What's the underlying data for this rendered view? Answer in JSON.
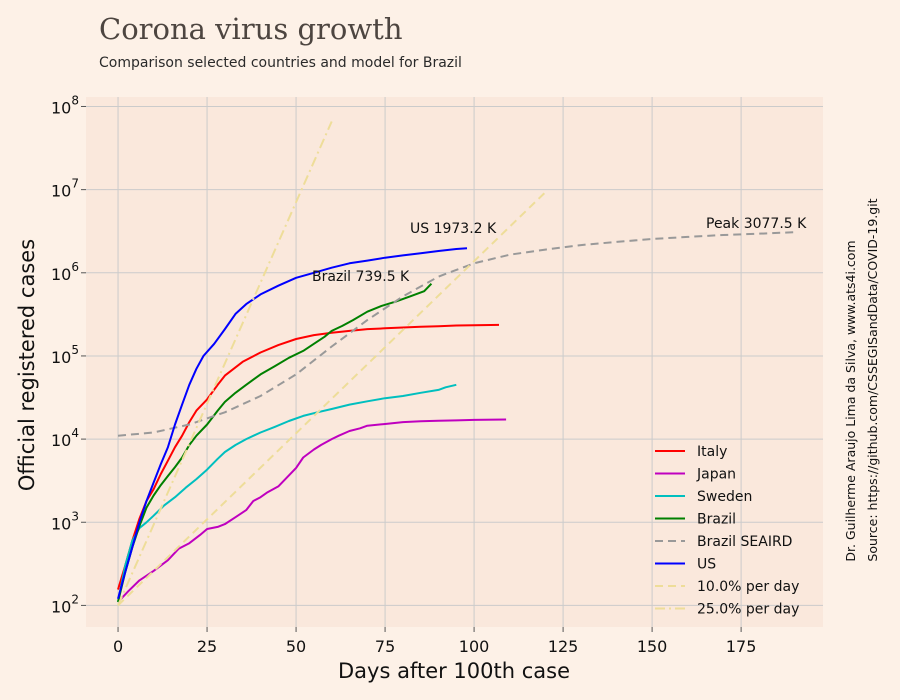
{
  "header": {
    "title": "Corona virus growth",
    "subtitle": "Comparison selected countries and model for Brazil"
  },
  "credits": {
    "author": "Dr. Guilherme Araujo Lima da Silva, www.ats4i.com",
    "source": "Source: https://github.com/CSSEGISandData/COVID-19.git"
  },
  "chart_data": {
    "type": "line",
    "xlabel": "Days after 100th case",
    "ylabel": "Official registered cases",
    "xlim": [
      -9,
      198
    ],
    "ylim": [
      55,
      130000000
    ],
    "yscale": "log",
    "x_ticks": [
      "0",
      "25",
      "50",
      "75",
      "100",
      "125",
      "150",
      "175"
    ],
    "y_tick_exponents": [
      "2",
      "3",
      "4",
      "5",
      "6",
      "7",
      "8"
    ],
    "grid": true,
    "legend_position": "lower-right",
    "annotations": [
      {
        "text": "US 1973.2 K",
        "x": 82,
        "y": 2800000
      },
      {
        "text": "Brazil 739.5 K",
        "x": 54,
        "y": 820000
      },
      {
        "text": "Peak 3077.5 K",
        "x": 165,
        "y": 3500000
      }
    ],
    "series": [
      {
        "name": "Italy",
        "color": "#ff0000",
        "style": "solid",
        "points": [
          [
            0,
            155
          ],
          [
            2,
            300
          ],
          [
            4,
            600
          ],
          [
            6,
            1100
          ],
          [
            8,
            1800
          ],
          [
            10,
            2500
          ],
          [
            12,
            3800
          ],
          [
            14,
            5500
          ],
          [
            16,
            8000
          ],
          [
            18,
            11000
          ],
          [
            20,
            16000
          ],
          [
            22,
            22000
          ],
          [
            25,
            30000
          ],
          [
            28,
            45000
          ],
          [
            30,
            58000
          ],
          [
            35,
            85000
          ],
          [
            40,
            110000
          ],
          [
            45,
            135000
          ],
          [
            50,
            160000
          ],
          [
            55,
            178000
          ],
          [
            60,
            190000
          ],
          [
            65,
            200000
          ],
          [
            70,
            210000
          ],
          [
            75,
            215000
          ],
          [
            80,
            220000
          ],
          [
            85,
            225000
          ],
          [
            90,
            228000
          ],
          [
            95,
            232000
          ],
          [
            100,
            234000
          ],
          [
            107,
            236000
          ]
        ]
      },
      {
        "name": "Japan",
        "color": "#bf00bf",
        "style": "solid",
        "points": [
          [
            0,
            110
          ],
          [
            3,
            150
          ],
          [
            6,
            200
          ],
          [
            10,
            260
          ],
          [
            14,
            350
          ],
          [
            17,
            480
          ],
          [
            20,
            560
          ],
          [
            23,
            700
          ],
          [
            25,
            830
          ],
          [
            28,
            880
          ],
          [
            30,
            950
          ],
          [
            33,
            1150
          ],
          [
            36,
            1400
          ],
          [
            38,
            1800
          ],
          [
            40,
            2000
          ],
          [
            42,
            2300
          ],
          [
            45,
            2700
          ],
          [
            47,
            3300
          ],
          [
            50,
            4500
          ],
          [
            52,
            6000
          ],
          [
            55,
            7500
          ],
          [
            57,
            8500
          ],
          [
            60,
            10000
          ],
          [
            62,
            11000
          ],
          [
            65,
            12500
          ],
          [
            68,
            13500
          ],
          [
            70,
            14500
          ],
          [
            75,
            15200
          ],
          [
            80,
            16000
          ],
          [
            85,
            16400
          ],
          [
            90,
            16600
          ],
          [
            95,
            16800
          ],
          [
            100,
            17000
          ],
          [
            109,
            17200
          ]
        ]
      },
      {
        "name": "Sweden",
        "color": "#00bfbf",
        "style": "solid",
        "points": [
          [
            0,
            110
          ],
          [
            2,
            300
          ],
          [
            4,
            600
          ],
          [
            6,
            850
          ],
          [
            8,
            1000
          ],
          [
            10,
            1200
          ],
          [
            13,
            1600
          ],
          [
            16,
            2000
          ],
          [
            19,
            2600
          ],
          [
            22,
            3300
          ],
          [
            25,
            4300
          ],
          [
            28,
            5800
          ],
          [
            30,
            7000
          ],
          [
            33,
            8500
          ],
          [
            36,
            10000
          ],
          [
            40,
            12000
          ],
          [
            44,
            14000
          ],
          [
            48,
            16500
          ],
          [
            52,
            19000
          ],
          [
            56,
            21000
          ],
          [
            60,
            23000
          ],
          [
            65,
            26000
          ],
          [
            70,
            28500
          ],
          [
            75,
            31000
          ],
          [
            80,
            33000
          ],
          [
            85,
            36000
          ],
          [
            90,
            39000
          ],
          [
            92,
            42000
          ],
          [
            95,
            45000
          ]
        ]
      },
      {
        "name": "Brazil",
        "color": "#008000",
        "style": "solid",
        "points": [
          [
            0,
            110
          ],
          [
            2,
            250
          ],
          [
            4,
            500
          ],
          [
            6,
            900
          ],
          [
            8,
            1500
          ],
          [
            10,
            2100
          ],
          [
            12,
            2800
          ],
          [
            14,
            3600
          ],
          [
            16,
            4600
          ],
          [
            18,
            6000
          ],
          [
            20,
            8500
          ],
          [
            22,
            11000
          ],
          [
            25,
            15000
          ],
          [
            28,
            22000
          ],
          [
            30,
            28000
          ],
          [
            33,
            36000
          ],
          [
            36,
            45000
          ],
          [
            40,
            60000
          ],
          [
            44,
            75000
          ],
          [
            48,
            95000
          ],
          [
            52,
            115000
          ],
          [
            55,
            140000
          ],
          [
            58,
            170000
          ],
          [
            60,
            200000
          ],
          [
            63,
            230000
          ],
          [
            66,
            270000
          ],
          [
            70,
            340000
          ],
          [
            74,
            400000
          ],
          [
            78,
            450000
          ],
          [
            82,
            520000
          ],
          [
            86,
            600000
          ],
          [
            88,
            739500
          ]
        ]
      },
      {
        "name": "Brazil SEAIRD",
        "color": "#999999",
        "style": "dashed",
        "points": [
          [
            0,
            11000
          ],
          [
            10,
            12000
          ],
          [
            20,
            15000
          ],
          [
            30,
            21000
          ],
          [
            40,
            33000
          ],
          [
            50,
            60000
          ],
          [
            60,
            130000
          ],
          [
            70,
            270000
          ],
          [
            80,
            520000
          ],
          [
            90,
            900000
          ],
          [
            100,
            1300000
          ],
          [
            110,
            1650000
          ],
          [
            120,
            1900000
          ],
          [
            130,
            2150000
          ],
          [
            140,
            2350000
          ],
          [
            150,
            2550000
          ],
          [
            160,
            2700000
          ],
          [
            170,
            2850000
          ],
          [
            180,
            2950000
          ],
          [
            190,
            3077500
          ]
        ]
      },
      {
        "name": "US",
        "color": "#0000ff",
        "style": "solid",
        "points": [
          [
            0,
            120
          ],
          [
            2,
            250
          ],
          [
            4,
            500
          ],
          [
            6,
            1000
          ],
          [
            8,
            1800
          ],
          [
            10,
            3000
          ],
          [
            12,
            5000
          ],
          [
            14,
            8000
          ],
          [
            16,
            15000
          ],
          [
            18,
            26000
          ],
          [
            20,
            45000
          ],
          [
            22,
            70000
          ],
          [
            24,
            100000
          ],
          [
            27,
            140000
          ],
          [
            30,
            210000
          ],
          [
            33,
            320000
          ],
          [
            36,
            420000
          ],
          [
            40,
            550000
          ],
          [
            45,
            700000
          ],
          [
            50,
            870000
          ],
          [
            55,
            1000000
          ],
          [
            60,
            1150000
          ],
          [
            65,
            1300000
          ],
          [
            70,
            1400000
          ],
          [
            75,
            1520000
          ],
          [
            80,
            1620000
          ],
          [
            85,
            1720000
          ],
          [
            90,
            1830000
          ],
          [
            95,
            1930000
          ],
          [
            98,
            1973200
          ]
        ]
      },
      {
        "name": "10.0% per day",
        "color": "#eedd99",
        "style": "dashed",
        "points": [
          [
            0,
            100
          ],
          [
            120,
            9300000
          ]
        ]
      },
      {
        "name": "25.0% per day",
        "color": "#eedd99",
        "style": "dashdot",
        "points": [
          [
            0,
            100
          ],
          [
            60,
            66000000
          ]
        ]
      }
    ]
  }
}
